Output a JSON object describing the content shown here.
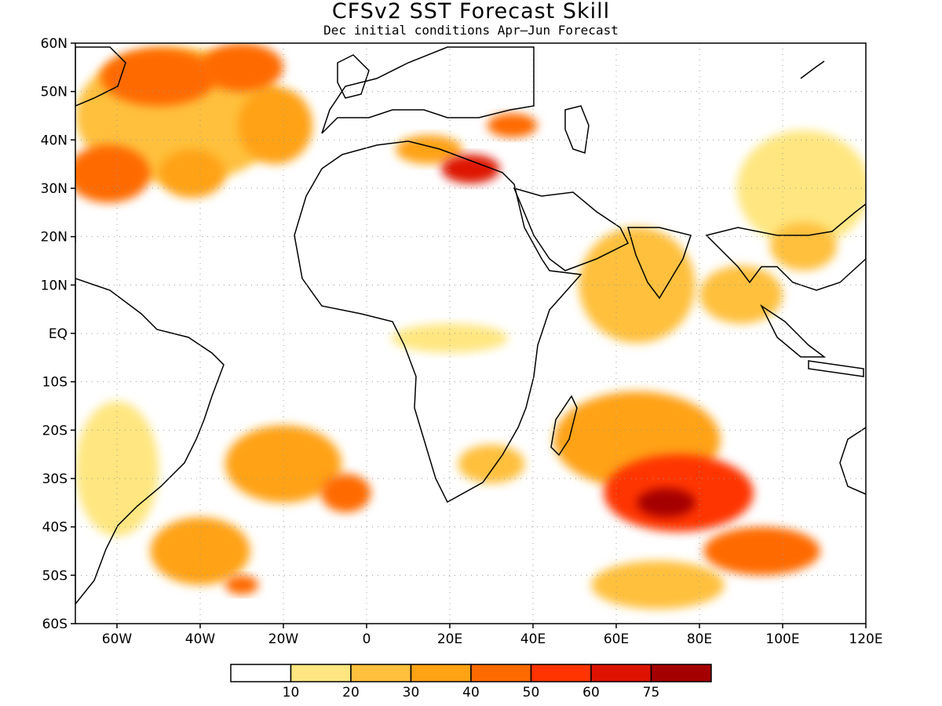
{
  "title": "CFSv2 SST Forecast Skill",
  "subtitle": "Dec initial conditions  Apr–Jun Forecast",
  "chart_data": {
    "type": "map",
    "lon_range": [
      -70,
      120
    ],
    "lat_range": [
      -60,
      60
    ],
    "lon_ticks": [
      {
        "value": -60,
        "label": "60W"
      },
      {
        "value": -40,
        "label": "40W"
      },
      {
        "value": -20,
        "label": "20W"
      },
      {
        "value": 0,
        "label": "0"
      },
      {
        "value": 20,
        "label": "20E"
      },
      {
        "value": 40,
        "label": "40E"
      },
      {
        "value": 60,
        "label": "60E"
      },
      {
        "value": 80,
        "label": "80E"
      },
      {
        "value": 100,
        "label": "100E"
      },
      {
        "value": 120,
        "label": "120E"
      }
    ],
    "lat_ticks": [
      {
        "value": 60,
        "label": "60N"
      },
      {
        "value": 50,
        "label": "50N"
      },
      {
        "value": 40,
        "label": "40N"
      },
      {
        "value": 30,
        "label": "30N"
      },
      {
        "value": 20,
        "label": "20N"
      },
      {
        "value": 10,
        "label": "10N"
      },
      {
        "value": 0,
        "label": "EQ"
      },
      {
        "value": -10,
        "label": "10S"
      },
      {
        "value": -20,
        "label": "20S"
      },
      {
        "value": -30,
        "label": "30S"
      },
      {
        "value": -40,
        "label": "40S"
      },
      {
        "value": -50,
        "label": "50S"
      },
      {
        "value": -60,
        "label": "60S"
      }
    ],
    "grid": true,
    "colorbar": {
      "colors": [
        "#ffffff",
        "#ffe680",
        "#ffc03d",
        "#ffa214",
        "#ff6a00",
        "#ff3400",
        "#de1200",
        "#a50000"
      ],
      "labels": [
        "10",
        "20",
        "30",
        "40",
        "50",
        "60",
        "75"
      ]
    },
    "skill_regions": [
      {
        "lon": -50,
        "lat": 53,
        "rx": 14,
        "ry": 6,
        "level": 4
      },
      {
        "lon": -30,
        "lat": 55,
        "rx": 10,
        "ry": 5,
        "level": 4
      },
      {
        "lon": -62,
        "lat": 33,
        "rx": 10,
        "ry": 6,
        "level": 4
      },
      {
        "lon": -42,
        "lat": 33,
        "rx": 8,
        "ry": 5,
        "level": 3
      },
      {
        "lon": -22,
        "lat": 43,
        "rx": 9,
        "ry": 8,
        "level": 3
      },
      {
        "lon": -45,
        "lat": 45,
        "rx": 25,
        "ry": 14,
        "level": 2
      },
      {
        "lon": 15,
        "lat": 38,
        "rx": 8,
        "ry": 3,
        "level": 3
      },
      {
        "lon": 25,
        "lat": 34,
        "rx": 7,
        "ry": 3,
        "level": 6
      },
      {
        "lon": 35,
        "lat": 43,
        "rx": 6,
        "ry": 2.5,
        "level": 4
      },
      {
        "lon": 105,
        "lat": 30,
        "rx": 16,
        "ry": 12,
        "level": 1
      },
      {
        "lon": 65,
        "lat": 10,
        "rx": 14,
        "ry": 12,
        "level": 2
      },
      {
        "lon": 90,
        "lat": 8,
        "rx": 10,
        "ry": 6,
        "level": 2
      },
      {
        "lon": 105,
        "lat": 18,
        "rx": 8,
        "ry": 5,
        "level": 2
      },
      {
        "lon": 20,
        "lat": -1,
        "rx": 14,
        "ry": 3,
        "level": 1
      },
      {
        "lon": 65,
        "lat": -22,
        "rx": 20,
        "ry": 10,
        "level": 3
      },
      {
        "lon": 75,
        "lat": -33,
        "rx": 18,
        "ry": 8,
        "level": 5
      },
      {
        "lon": 72,
        "lat": -35,
        "rx": 7,
        "ry": 3,
        "level": 7
      },
      {
        "lon": 95,
        "lat": -45,
        "rx": 14,
        "ry": 5,
        "level": 4
      },
      {
        "lon": -20,
        "lat": -27,
        "rx": 14,
        "ry": 8,
        "level": 3
      },
      {
        "lon": -5,
        "lat": -33,
        "rx": 6,
        "ry": 4,
        "level": 4
      },
      {
        "lon": -40,
        "lat": -45,
        "rx": 12,
        "ry": 7,
        "level": 3
      },
      {
        "lon": -60,
        "lat": -28,
        "rx": 10,
        "ry": 14,
        "level": 1
      },
      {
        "lon": 30,
        "lat": -27,
        "rx": 8,
        "ry": 4,
        "level": 2
      },
      {
        "lon": 70,
        "lat": -52,
        "rx": 16,
        "ry": 5,
        "level": 2
      },
      {
        "lon": -30,
        "lat": -52,
        "rx": 4,
        "ry": 2,
        "level": 4
      }
    ]
  }
}
